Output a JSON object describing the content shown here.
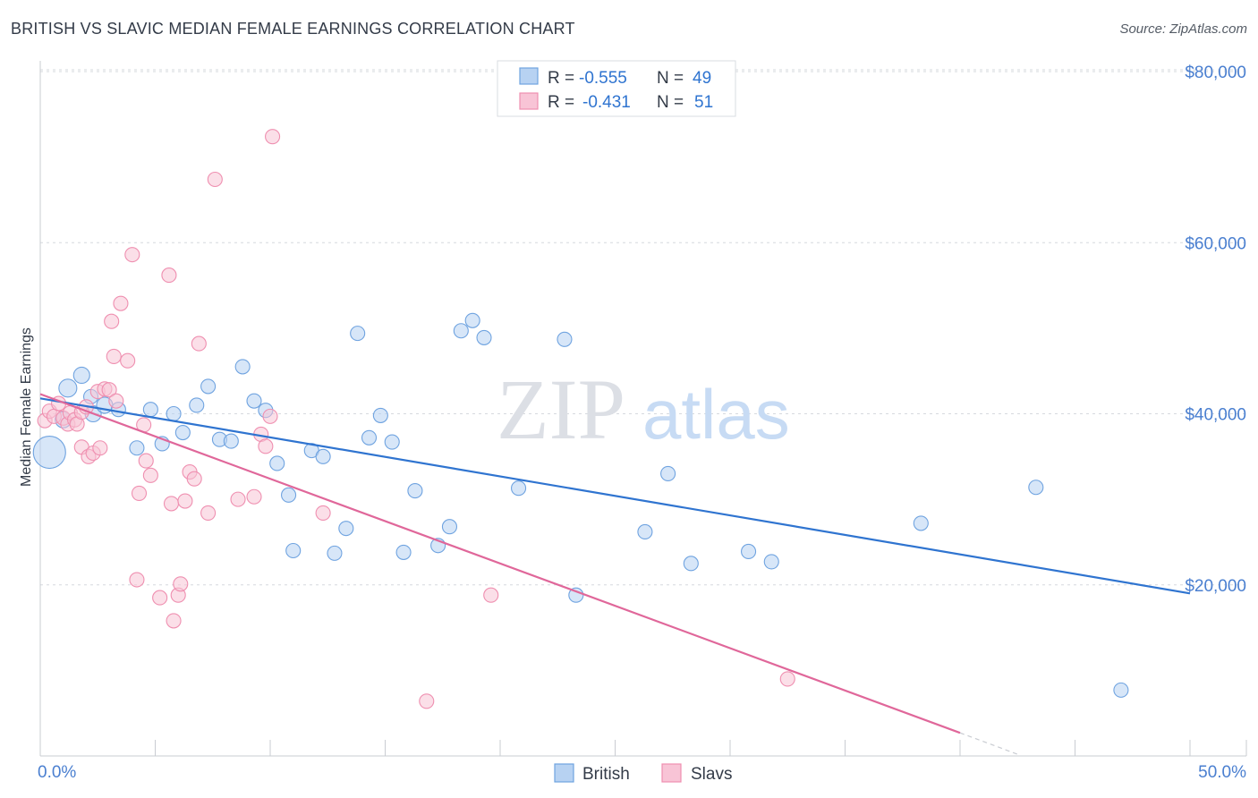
{
  "title": "BRITISH VS SLAVIC MEDIAN FEMALE EARNINGS CORRELATION CHART",
  "source": "Source: ZipAtlas.com",
  "watermark": {
    "part1": "ZIP",
    "part2": "atlas"
  },
  "chart_data": {
    "type": "scatter",
    "xlabel": "",
    "ylabel": "Median Female Earnings",
    "xlim": [
      0,
      50
    ],
    "ylim": [
      0,
      80000
    ],
    "x_tick_labels": [
      "0.0%",
      "50.0%"
    ],
    "y_tick_labels": [
      "$20,000",
      "$40,000",
      "$60,000",
      "$80,000"
    ],
    "y_ticks": [
      20000,
      40000,
      60000,
      80000
    ],
    "grid": "horizontal dashed",
    "legend_position": "bottom-center",
    "stats_box": [
      {
        "r_label": "R = ",
        "r_value": "-0.555",
        "n_label": "N = ",
        "n_value": "49"
      },
      {
        "r_label": "R = ",
        "r_value": "-0.431",
        "n_label": "N = ",
        "n_value": "51"
      }
    ],
    "series": [
      {
        "name": "British",
        "color": "#6fa3e0",
        "fill": "#b7d2f2",
        "line_color": "#2f74d0",
        "trend": {
          "x": [
            0,
            50
          ],
          "y": [
            41800,
            19000
          ]
        },
        "points": [
          [
            0.4,
            35500,
            18
          ],
          [
            1.2,
            43000,
            10
          ],
          [
            1.8,
            44500,
            9
          ],
          [
            2.3,
            40000,
            9
          ],
          [
            2.8,
            41000,
            9
          ],
          [
            2.2,
            42000,
            8
          ],
          [
            3.4,
            40500,
            8
          ],
          [
            4.2,
            36000,
            8
          ],
          [
            4.8,
            40500,
            8
          ],
          [
            5.3,
            36500,
            8
          ],
          [
            5.8,
            40000,
            8
          ],
          [
            6.2,
            37800,
            8
          ],
          [
            6.8,
            41000,
            8
          ],
          [
            7.3,
            43200,
            8
          ],
          [
            7.8,
            37000,
            8
          ],
          [
            8.3,
            36800,
            8
          ],
          [
            8.8,
            45500,
            8
          ],
          [
            9.3,
            41500,
            8
          ],
          [
            9.8,
            40400,
            8
          ],
          [
            10.3,
            34200,
            8
          ],
          [
            10.8,
            30500,
            8
          ],
          [
            11.0,
            24000,
            8
          ],
          [
            11.8,
            35700,
            8
          ],
          [
            12.3,
            35000,
            8
          ],
          [
            12.8,
            23700,
            8
          ],
          [
            13.3,
            26600,
            8
          ],
          [
            13.8,
            49400,
            8
          ],
          [
            14.3,
            37200,
            8
          ],
          [
            14.8,
            39800,
            8
          ],
          [
            15.3,
            36700,
            8
          ],
          [
            15.8,
            23800,
            8
          ],
          [
            16.3,
            31000,
            8
          ],
          [
            17.3,
            24600,
            8
          ],
          [
            17.8,
            26800,
            8
          ],
          [
            18.3,
            49700,
            8
          ],
          [
            18.8,
            50900,
            8
          ],
          [
            19.3,
            48900,
            8
          ],
          [
            20.8,
            31300,
            8
          ],
          [
            22.8,
            48700,
            8
          ],
          [
            23.3,
            18800,
            8
          ],
          [
            26.3,
            26200,
            8
          ],
          [
            27.3,
            33000,
            8
          ],
          [
            28.3,
            22500,
            8
          ],
          [
            30.8,
            23900,
            8
          ],
          [
            31.8,
            22700,
            8
          ],
          [
            38.3,
            27200,
            8
          ],
          [
            43.3,
            31400,
            8
          ],
          [
            47.0,
            7700,
            8
          ],
          [
            1.0,
            39300,
            9
          ]
        ]
      },
      {
        "name": "Slavs",
        "color": "#ef8fb0",
        "fill": "#f8c4d6",
        "line_color": "#e0679a",
        "trend": {
          "x": [
            0,
            40
          ],
          "y": [
            42300,
            2700
          ]
        },
        "trend_dashed": {
          "x": [
            40,
            42.5
          ],
          "y": [
            2700,
            200
          ]
        },
        "points": [
          [
            0.2,
            39200,
            8
          ],
          [
            0.4,
            40300,
            8
          ],
          [
            0.6,
            39700,
            8
          ],
          [
            0.8,
            41200,
            8
          ],
          [
            1.0,
            39500,
            8
          ],
          [
            1.2,
            38800,
            8
          ],
          [
            1.3,
            40100,
            8
          ],
          [
            1.5,
            39300,
            8
          ],
          [
            1.6,
            38800,
            8
          ],
          [
            1.8,
            40200,
            8
          ],
          [
            1.8,
            36100,
            8
          ],
          [
            2.0,
            40800,
            8
          ],
          [
            2.1,
            35000,
            8
          ],
          [
            2.3,
            35400,
            8
          ],
          [
            2.5,
            42600,
            8
          ],
          [
            2.6,
            36000,
            8
          ],
          [
            2.8,
            42900,
            8
          ],
          [
            3.0,
            42800,
            8
          ],
          [
            3.1,
            50800,
            8
          ],
          [
            3.2,
            46700,
            8
          ],
          [
            3.3,
            41500,
            8
          ],
          [
            3.5,
            52900,
            8
          ],
          [
            3.8,
            46200,
            8
          ],
          [
            4.0,
            58600,
            8
          ],
          [
            4.2,
            20600,
            8
          ],
          [
            4.3,
            30700,
            8
          ],
          [
            4.5,
            38700,
            8
          ],
          [
            4.6,
            34500,
            8
          ],
          [
            4.8,
            32800,
            8
          ],
          [
            5.2,
            18500,
            8
          ],
          [
            5.6,
            56200,
            8
          ],
          [
            5.7,
            29500,
            8
          ],
          [
            5.8,
            15800,
            8
          ],
          [
            6.0,
            18800,
            8
          ],
          [
            6.1,
            20100,
            8
          ],
          [
            6.3,
            29800,
            8
          ],
          [
            6.5,
            33200,
            8
          ],
          [
            6.7,
            32400,
            8
          ],
          [
            6.9,
            48200,
            8
          ],
          [
            7.3,
            28400,
            8
          ],
          [
            7.6,
            67400,
            8
          ],
          [
            8.6,
            30000,
            8
          ],
          [
            9.3,
            30300,
            8
          ],
          [
            9.6,
            37600,
            8
          ],
          [
            9.8,
            36200,
            8
          ],
          [
            10.0,
            39700,
            8
          ],
          [
            10.1,
            72400,
            8
          ],
          [
            12.3,
            28400,
            8
          ],
          [
            16.8,
            6400,
            8
          ],
          [
            19.6,
            18800,
            8
          ],
          [
            32.5,
            9000,
            8
          ]
        ]
      }
    ]
  }
}
